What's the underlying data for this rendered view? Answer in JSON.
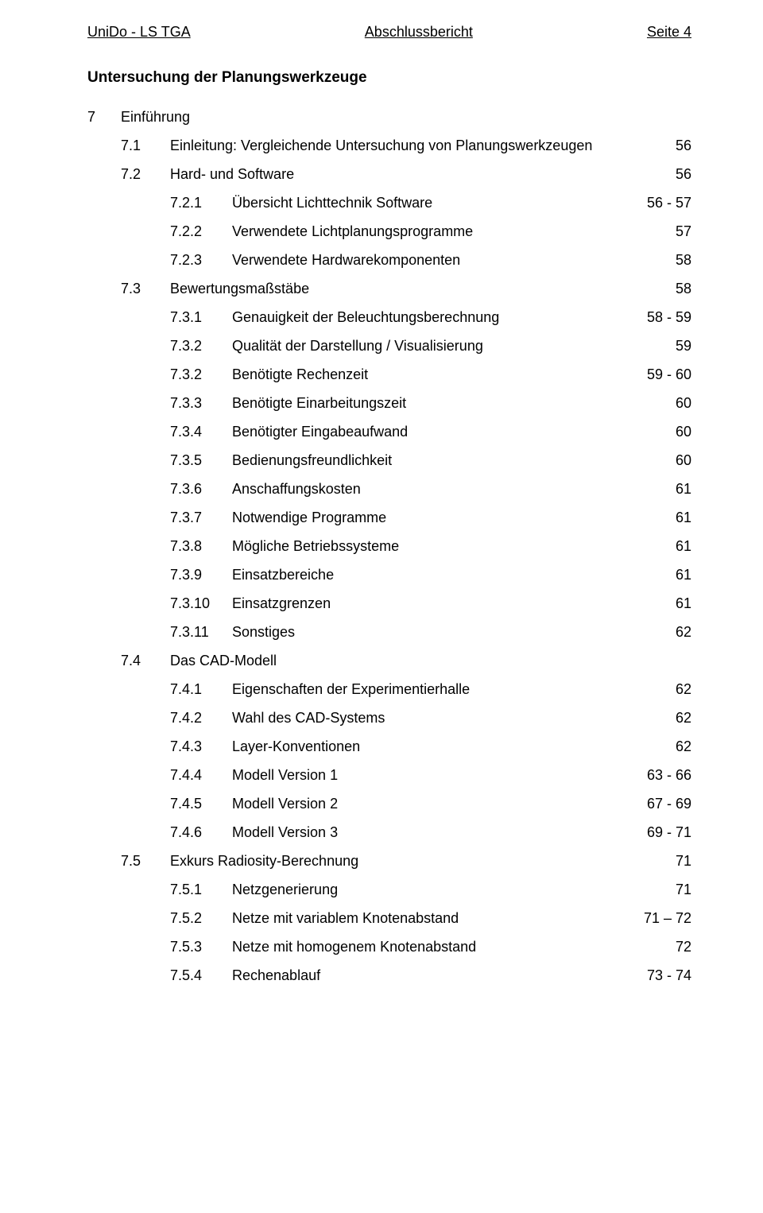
{
  "header": {
    "left": "UniDo - LS TGA",
    "center": "Abschlussbericht",
    "right": "Seite 4"
  },
  "section_title": "Untersuchung der Planungswerkzeuge",
  "rows": [
    {
      "level": 0,
      "num": "7",
      "text": "Einführung",
      "page": ""
    },
    {
      "level": 1,
      "num": "7.1",
      "text": "Einleitung: Vergleichende Untersuchung von Planungswerkzeugen",
      "page": "56"
    },
    {
      "level": 1,
      "num": "7.2",
      "text": "Hard- und Software",
      "page": "56"
    },
    {
      "level": 2,
      "num": "7.2.1",
      "text": "Übersicht Lichttechnik Software",
      "page": "56 - 57"
    },
    {
      "level": 2,
      "num": "7.2.2",
      "text": "Verwendete Lichtplanungsprogramme",
      "page": "57"
    },
    {
      "level": 2,
      "num": "7.2.3",
      "text": "Verwendete Hardwarekomponenten",
      "page": "58"
    },
    {
      "level": 1,
      "num": "7.3",
      "text": "Bewertungsmaßstäbe",
      "page": "58"
    },
    {
      "level": 2,
      "num": "7.3.1",
      "text": "Genauigkeit der Beleuchtungsberechnung",
      "page": "58 - 59"
    },
    {
      "level": 2,
      "num": "7.3.2",
      "text": "Qualität der Darstellung / Visualisierung",
      "page": "59"
    },
    {
      "level": 2,
      "num": "7.3.2",
      "text": "Benötigte Rechenzeit",
      "page": "59 - 60"
    },
    {
      "level": 2,
      "num": "7.3.3",
      "text": "Benötigte Einarbeitungszeit",
      "page": "60"
    },
    {
      "level": 2,
      "num": "7.3.4",
      "text": "Benötigter Eingabeaufwand",
      "page": "60"
    },
    {
      "level": 2,
      "num": "7.3.5",
      "text": "Bedienungsfreundlichkeit",
      "page": "60"
    },
    {
      "level": 2,
      "num": "7.3.6",
      "text": "Anschaffungskosten",
      "page": "61"
    },
    {
      "level": 2,
      "num": "7.3.7",
      "text": "Notwendige Programme",
      "page": "61"
    },
    {
      "level": 2,
      "num": "7.3.8",
      "text": "Mögliche Betriebssysteme",
      "page": "61"
    },
    {
      "level": 2,
      "num": "7.3.9",
      "text": "Einsatzbereiche",
      "page": "61"
    },
    {
      "level": 2,
      "num": "7.3.10",
      "text": "Einsatzgrenzen",
      "page": "61"
    },
    {
      "level": 2,
      "num": "7.3.11",
      "text": "Sonstiges",
      "page": "62"
    },
    {
      "level": 1,
      "num": "7.4",
      "text": "Das CAD-Modell",
      "page": ""
    },
    {
      "level": 2,
      "num": "7.4.1",
      "text": "Eigenschaften der Experimentierhalle",
      "page": "62"
    },
    {
      "level": 2,
      "num": "7.4.2",
      "text": "Wahl des CAD-Systems",
      "page": "62"
    },
    {
      "level": 2,
      "num": "7.4.3",
      "text": "Layer-Konventionen",
      "page": "62"
    },
    {
      "level": 2,
      "num": "7.4.4",
      "text": "Modell Version 1",
      "page": "63 - 66"
    },
    {
      "level": 2,
      "num": "7.4.5",
      "text": "Modell Version 2",
      "page": "67 - 69"
    },
    {
      "level": 2,
      "num": "7.4.6",
      "text": "Modell Version 3",
      "page": "69 - 71"
    },
    {
      "level": 1,
      "num": "7.5",
      "text": "Exkurs Radiosity-Berechnung",
      "page": "71"
    },
    {
      "level": 2,
      "num": "7.5.1",
      "text": "Netzgenerierung",
      "page": "71"
    },
    {
      "level": 2,
      "num": "7.5.2",
      "text": "Netze mit variablem Knotenabstand",
      "page": "71 – 72"
    },
    {
      "level": 2,
      "num": "7.5.3",
      "text": "Netze mit homogenem Knotenabstand",
      "page": "72"
    },
    {
      "level": 2,
      "num": "7.5.4",
      "text": "Rechenablauf",
      "page": "73 - 74"
    }
  ]
}
